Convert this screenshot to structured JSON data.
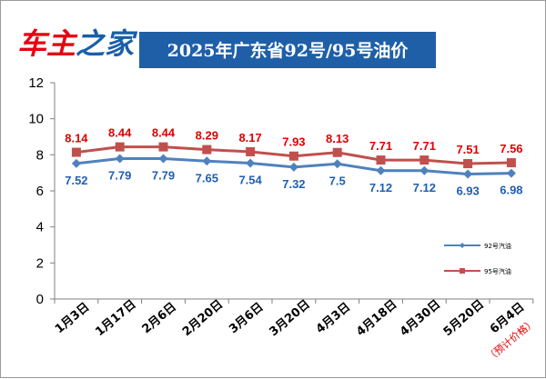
{
  "header": {
    "logo_text": "车主之家",
    "logo_color_primary": "#e60012",
    "logo_color_secondary": "#1a5fa8",
    "title": "2025年广东省92号/95号油价",
    "title_bg": "#1e5fa8"
  },
  "colors": {
    "series_92": "#4f81bd",
    "series_95": "#c0504d",
    "label_92": "#1f5fb0",
    "label_95": "#e00000",
    "note": "#e00000",
    "axis": "#808080"
  },
  "chart_data": {
    "type": "line",
    "categories": [
      "1月3日",
      "1月17日",
      "2月6日",
      "2月20日",
      "3月6日",
      "3月20日",
      "4月3日",
      "4月18日",
      "4月30日",
      "5月20日",
      "6月4日"
    ],
    "category_note": "（预计价格）",
    "series": [
      {
        "name": "95号汽油",
        "values": [
          8.14,
          8.44,
          8.44,
          8.29,
          8.17,
          7.93,
          8.13,
          7.71,
          7.71,
          7.51,
          7.56
        ],
        "labels": [
          "8.14",
          "8.44",
          "8.44",
          "8.29",
          "8.17",
          "7.93",
          "8.13",
          "7.71",
          "7.71",
          "7.51",
          "7.56"
        ]
      },
      {
        "name": "92号汽油",
        "values": [
          7.52,
          7.79,
          7.79,
          7.65,
          7.54,
          7.32,
          7.5,
          7.12,
          7.12,
          6.93,
          6.98
        ],
        "labels": [
          "7.52",
          "7.79",
          "7.79",
          "7.65",
          "7.54",
          "7.32",
          "7.5",
          "7.12",
          "7.12",
          "6.93",
          "6.98"
        ]
      }
    ],
    "ylim": [
      0,
      12
    ],
    "yticks": [
      "0",
      "2",
      "4",
      "6",
      "8",
      "10",
      "12"
    ],
    "grid": false,
    "legend_position": "right",
    "legend": [
      {
        "name": "92号汽油",
        "marker": "diamond"
      },
      {
        "name": "95号汽油",
        "marker": "square"
      }
    ]
  }
}
